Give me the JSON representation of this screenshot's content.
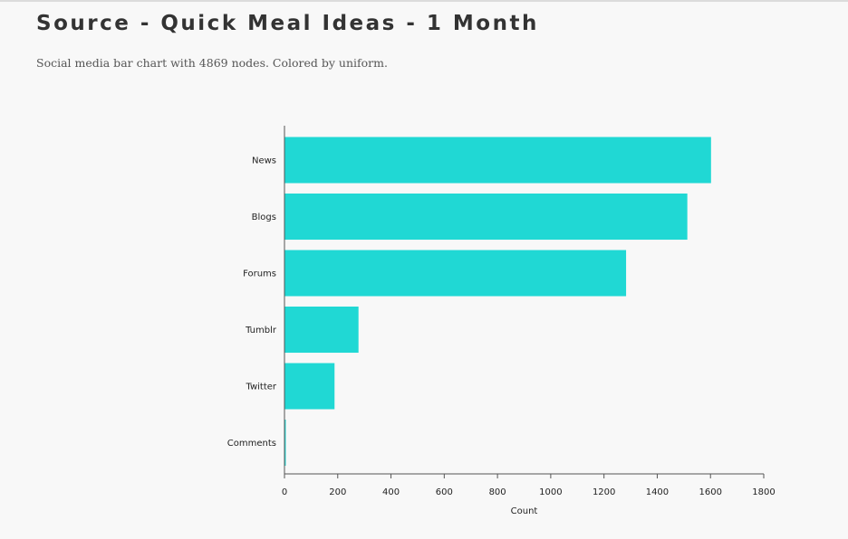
{
  "page": {
    "title": "Source - Quick Meal Ideas - 1 Month",
    "subtitle": "Social media bar chart with 4869 nodes. Colored by uniform."
  },
  "chart_data": {
    "type": "bar",
    "orientation": "horizontal",
    "categories": [
      "News",
      "Blogs",
      "Forums",
      "Tumblr",
      "Twitter",
      "Comments"
    ],
    "values": [
      1602,
      1513,
      1283,
      278,
      188,
      5
    ],
    "xlabel": "Count",
    "ylabel": "",
    "xlim": [
      0,
      1800
    ],
    "xticks": [
      "0",
      "200",
      "400",
      "600",
      "800",
      "1000",
      "1200",
      "1400",
      "1600",
      "1800"
    ],
    "bar_color": "#20d8d4",
    "grid": false,
    "legend": "none"
  }
}
